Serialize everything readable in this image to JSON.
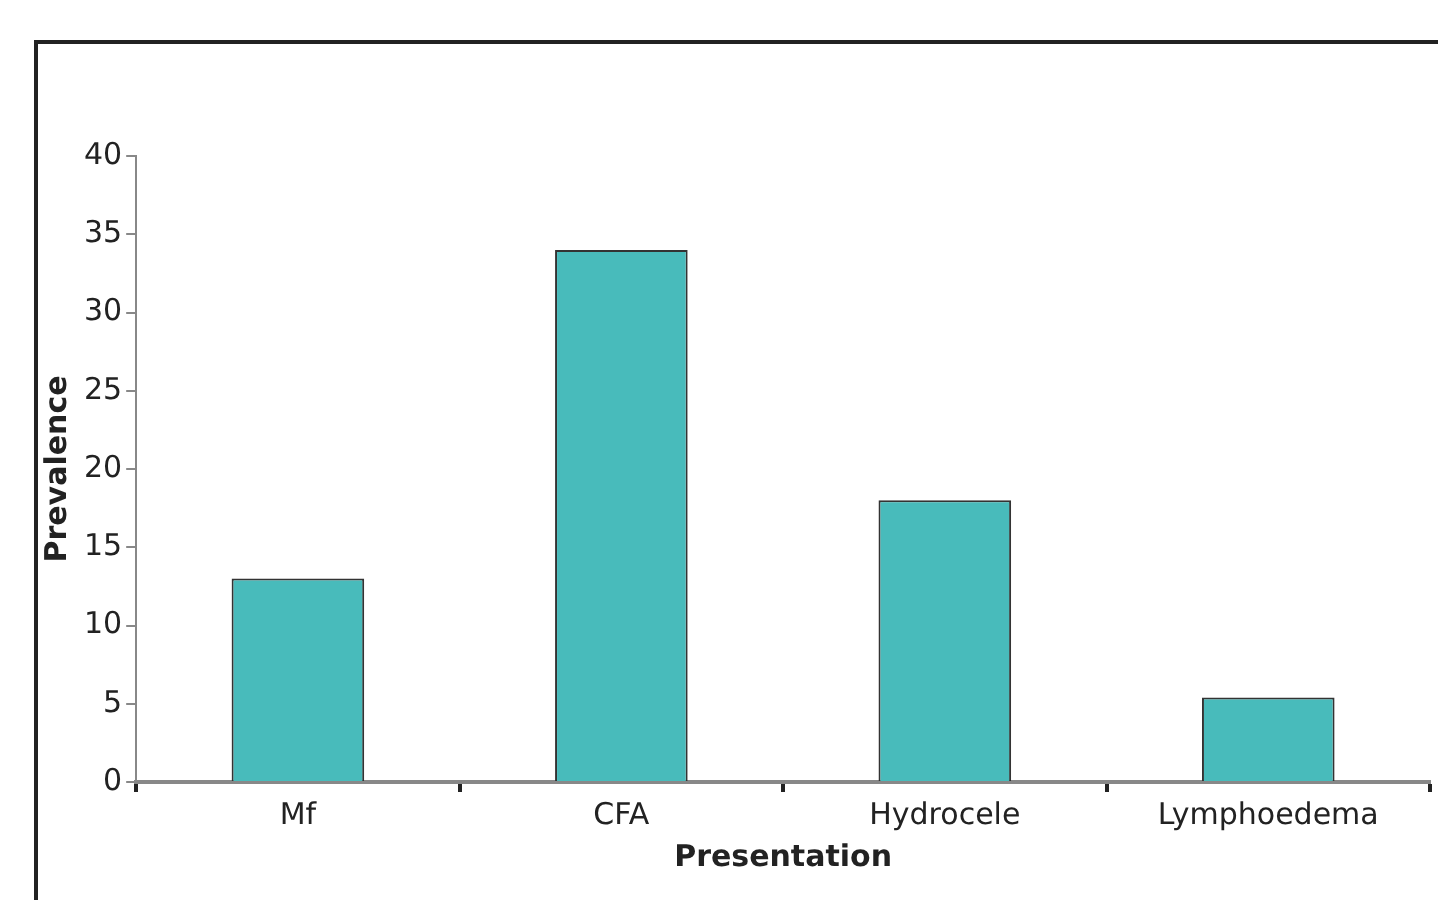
{
  "chart_data": {
    "type": "bar",
    "xlabel": "Presentation",
    "ylabel": "Prevalence",
    "categories": [
      "Mf",
      "CFA",
      "Hydrocele",
      "Lymphoedema"
    ],
    "values": [
      13,
      34,
      18,
      5.4
    ],
    "color": "#48bbbb",
    "ylim": [
      0,
      40
    ],
    "yticks": [
      0,
      5,
      10,
      15,
      20,
      25,
      30,
      35,
      40
    ],
    "grid": false,
    "legend": false
  }
}
